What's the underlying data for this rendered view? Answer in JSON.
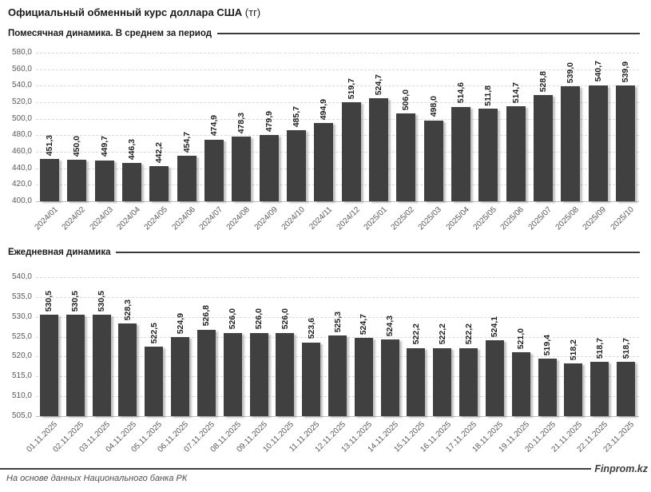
{
  "page": {
    "title": "Официальный обменный курс доллара США",
    "title_unit": "(тг)",
    "footer_source": "На основе данных Национального банка РК",
    "brand": "Finprom.kz"
  },
  "colors": {
    "bar": "#404040",
    "axis_text": "#595959",
    "gridline": "#d9d9d9",
    "value_label": "#1f1f1f",
    "rule": "#3a3a3a"
  },
  "chart_data": [
    {
      "type": "bar",
      "title": "Помесячная динамика. В среднем за период",
      "categories": [
        "2024/01",
        "2024/02",
        "2024/03",
        "2024/04",
        "2024/05",
        "2024/06",
        "2024/07",
        "2024/08",
        "2024/09",
        "2024/10",
        "2024/11",
        "2024/12",
        "2025/01",
        "2025/02",
        "2025/03",
        "2025/04",
        "2025/05",
        "2025/06",
        "2025/07",
        "2025/08",
        "2025/09",
        "2025/10"
      ],
      "values": [
        451.3,
        450.0,
        449.7,
        446.3,
        442.2,
        454.7,
        474.9,
        478.3,
        479.9,
        485.7,
        494.9,
        519.7,
        524.7,
        506.0,
        498.0,
        514.6,
        511.8,
        514.7,
        528.8,
        539.0,
        540.7,
        539.9
      ],
      "xlabel": "",
      "ylabel": "",
      "ylim": [
        400.0,
        580.0
      ],
      "ytick_step": 20.0,
      "grid": true,
      "value_labels": true,
      "legend": false
    },
    {
      "type": "bar",
      "title": "Ежедневная динамика",
      "categories": [
        "01.11.2025",
        "02.11.2025",
        "03.11.2025",
        "04.11.2025",
        "05.11.2025",
        "06.11.2025",
        "07.11.2025",
        "08.11.2025",
        "09.11.2025",
        "10.11.2025",
        "11.11.2025",
        "12.11.2025",
        "13.11.2025",
        "14.11.2025",
        "15.11.2025",
        "16.11.2025",
        "17.11.2025",
        "18.11.2025",
        "19.11.2025",
        "20.11.2025",
        "21.11.2025",
        "22.11.2025",
        "23.11.2025"
      ],
      "values": [
        530.5,
        530.5,
        530.5,
        528.3,
        522.5,
        524.9,
        526.8,
        526.0,
        526.0,
        526.0,
        523.6,
        525.3,
        524.7,
        524.3,
        522.2,
        522.2,
        522.2,
        524.1,
        521.0,
        519.4,
        518.2,
        518.7,
        518.7
      ],
      "xlabel": "",
      "ylabel": "",
      "ylim": [
        505.0,
        540.0
      ],
      "ytick_step": 5.0,
      "grid": true,
      "value_labels": true,
      "legend": false
    }
  ]
}
